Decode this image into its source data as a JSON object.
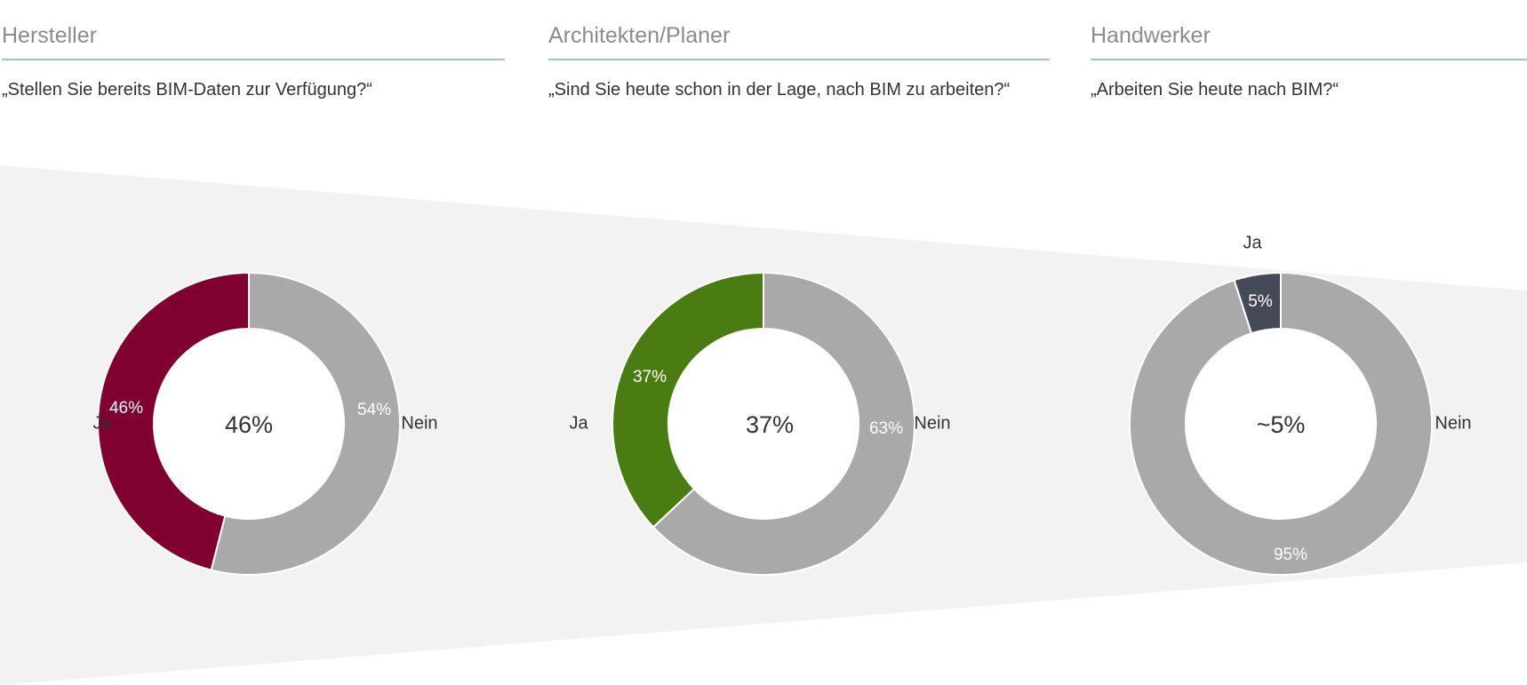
{
  "colors": {
    "funnel": "#f1f2f1",
    "no_segment": "#a9a9a9",
    "rule": "#9fc0d6"
  },
  "panels": [
    {
      "title": "Hersteller",
      "question": "„Stellen Sie bereits BIM-Daten zur Verfügung?“",
      "center_label": "46%",
      "yes_label": "Ja",
      "no_label": "Nein",
      "yes_value_label": "46%",
      "no_value_label": "54%",
      "yes_color": "#800030"
    },
    {
      "title": "Architekten/Planer",
      "question": "„Sind Sie heute schon in der Lage, nach BIM zu arbeiten?“",
      "center_label": "37%",
      "yes_label": "Ja",
      "no_label": "Nein",
      "yes_value_label": "37%",
      "no_value_label": "63%",
      "yes_color": "#4a7c12"
    },
    {
      "title": "Handwerker",
      "question": "„Arbeiten Sie heute nach BIM?“",
      "center_label": "~5%",
      "yes_label": "Ja",
      "no_label": "Nein",
      "yes_value_label": "5%",
      "no_value_label": "95%",
      "yes_color": "#454a58"
    }
  ],
  "chart_data": [
    {
      "type": "pie",
      "title": "Hersteller",
      "categories": [
        "Ja",
        "Nein"
      ],
      "values": [
        46,
        54
      ],
      "colors": [
        "#800030",
        "#a9a9a9"
      ]
    },
    {
      "type": "pie",
      "title": "Architekten/Planer",
      "categories": [
        "Ja",
        "Nein"
      ],
      "values": [
        37,
        63
      ],
      "colors": [
        "#4a7c12",
        "#a9a9a9"
      ]
    },
    {
      "type": "pie",
      "title": "Handwerker",
      "categories": [
        "Ja",
        "Nein"
      ],
      "values": [
        5,
        95
      ],
      "colors": [
        "#454a58",
        "#a9a9a9"
      ]
    }
  ]
}
